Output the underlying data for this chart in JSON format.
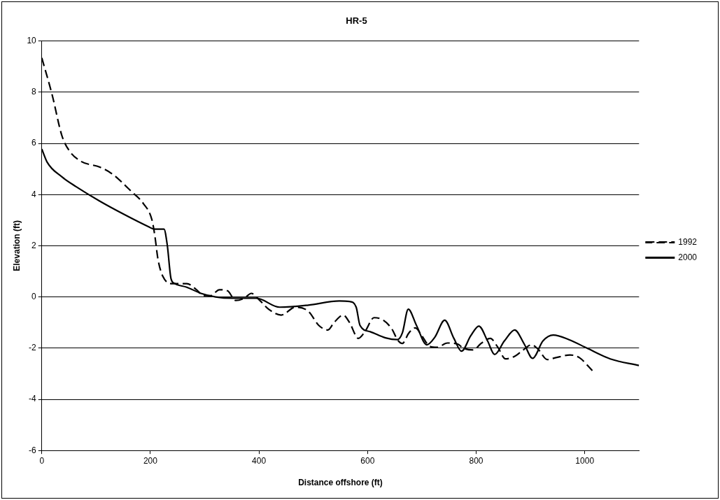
{
  "chart_data": {
    "type": "line",
    "title": "HR-5",
    "xlabel": "Distance offshore (ft)",
    "ylabel": "Elevation (ft)",
    "xlim": [
      0,
      1100
    ],
    "xticks": [
      0,
      200,
      400,
      600,
      800,
      1000
    ],
    "ylim": [
      -6,
      10
    ],
    "yticks": [
      -6,
      -4,
      -2,
      0,
      2,
      4,
      6,
      8,
      10
    ],
    "grid": "y",
    "legend": "right",
    "marker": "none",
    "series": [
      {
        "name": "1992",
        "color": "#000000",
        "line_style": "dashed",
        "x": [
          0,
          19,
          37,
          50,
          72,
          107,
          130,
          165,
          187,
          203,
          208,
          214,
          223,
          240,
          267,
          285,
          298,
          311,
          327,
          342,
          357,
          373,
          386,
          395,
          419,
          441,
          467,
          491,
          510,
          527,
          538,
          555,
          567,
          583,
          595,
          612,
          629,
          645,
          655,
          664,
          676,
          688,
          700,
          714,
          728,
          747,
          766,
          776,
          795,
          809,
          826,
          840,
          854,
          871,
          885,
          902,
          914,
          931,
          947,
          973,
          990,
          1014
        ],
        "values": [
          9.34,
          7.9,
          6.3,
          5.73,
          5.3,
          5.07,
          4.8,
          4.12,
          3.65,
          3.0,
          2.42,
          1.47,
          0.8,
          0.52,
          0.52,
          0.28,
          0.05,
          0.05,
          0.28,
          0.24,
          -0.14,
          -0.05,
          0.14,
          0.0,
          -0.5,
          -0.71,
          -0.4,
          -0.56,
          -1.11,
          -1.29,
          -1.01,
          -0.71,
          -1.01,
          -1.62,
          -1.36,
          -0.81,
          -0.91,
          -1.26,
          -1.67,
          -1.82,
          -1.41,
          -1.21,
          -1.52,
          -1.92,
          -1.97,
          -1.8,
          -1.84,
          -2.0,
          -2.07,
          -1.82,
          -1.62,
          -1.97,
          -2.42,
          -2.32,
          -2.1,
          -1.87,
          -2.04,
          -2.45,
          -2.37,
          -2.27,
          -2.37,
          -2.88
        ]
      },
      {
        "name": "2000",
        "color": "#000000",
        "line_style": "solid",
        "x": [
          0,
          10,
          37,
          63,
          107,
          152,
          196,
          207,
          225,
          231,
          238,
          245,
          267,
          293,
          320,
          351,
          395,
          438,
          491,
          548,
          567,
          579,
          586,
          605,
          633,
          655,
          664,
          675,
          690,
          709,
          724,
          742,
          759,
          773,
          790,
          805,
          821,
          834,
          852,
          871,
          888,
          904,
          923,
          942,
          971,
          1004,
          1047,
          1100
        ],
        "values": [
          5.78,
          5.26,
          4.69,
          4.31,
          3.74,
          3.22,
          2.75,
          2.65,
          2.65,
          2.04,
          0.71,
          0.52,
          0.38,
          0.14,
          0.0,
          -0.05,
          -0.05,
          -0.4,
          -0.32,
          -0.16,
          -0.18,
          -0.4,
          -1.11,
          -1.36,
          -1.6,
          -1.67,
          -1.41,
          -0.48,
          -1.11,
          -1.87,
          -1.57,
          -0.91,
          -1.62,
          -2.12,
          -1.52,
          -1.14,
          -1.72,
          -2.25,
          -1.72,
          -1.29,
          -1.82,
          -2.4,
          -1.72,
          -1.49,
          -1.67,
          -2.0,
          -2.42,
          -2.68
        ]
      }
    ]
  }
}
